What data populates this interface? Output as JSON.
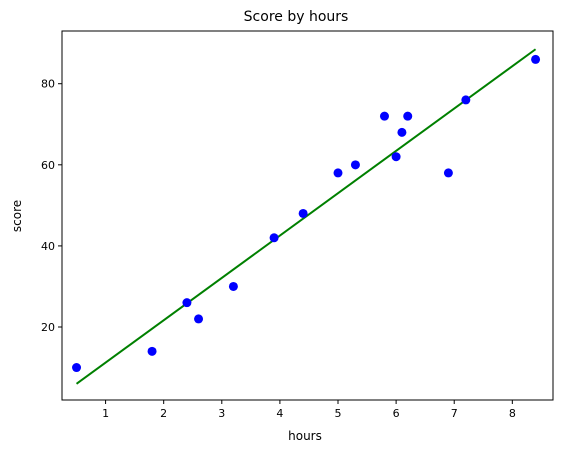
{
  "chart_data": {
    "type": "scatter",
    "title": "Score by hours",
    "xlabel": "hours",
    "ylabel": "score",
    "xlim": [
      0.25,
      8.7
    ],
    "ylim": [
      2,
      93
    ],
    "xticks": [
      1,
      2,
      3,
      4,
      5,
      6,
      7,
      8
    ],
    "yticks": [
      20,
      40,
      60,
      80
    ],
    "grid": false,
    "points": {
      "x": [
        0.5,
        1.8,
        2.4,
        2.6,
        3.2,
        3.9,
        4.4,
        5.0,
        5.3,
        5.8,
        6.0,
        6.1,
        6.2,
        6.9,
        7.2,
        8.4
      ],
      "y": [
        10,
        14,
        26,
        22,
        30,
        42,
        48,
        58,
        60,
        72,
        62,
        68,
        72,
        58,
        76,
        86
      ],
      "color": "#0000ff"
    },
    "fit_line": {
      "x": [
        0.5,
        8.4
      ],
      "y": [
        6,
        88.5
      ],
      "color": "#008000"
    }
  }
}
